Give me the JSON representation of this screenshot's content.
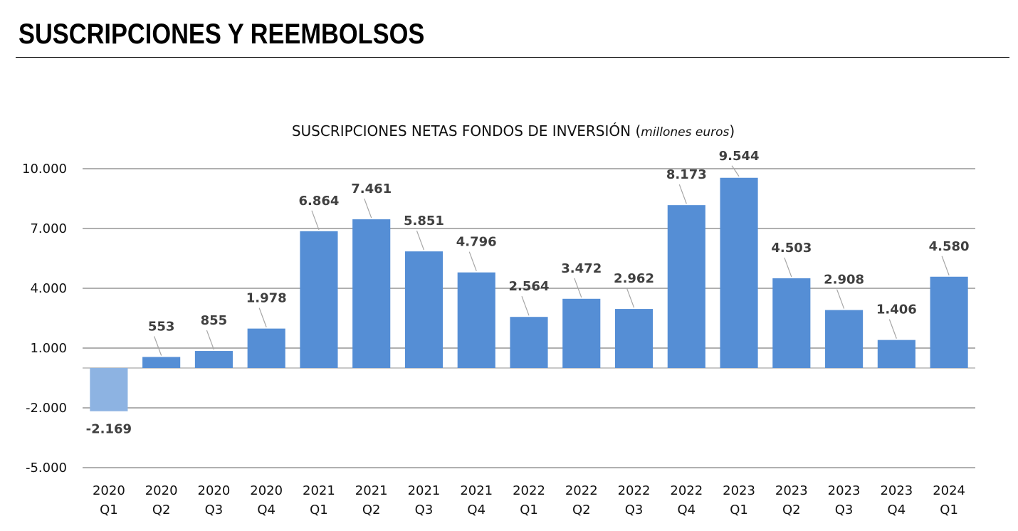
{
  "header": {
    "title": "SUSCRIPCIONES Y REEMBOLSOS"
  },
  "chart_data": {
    "type": "bar",
    "title": "SUSCRIPCIONES NETAS FONDOS DE INVERSIÓN",
    "title_unit": "millones euros",
    "categories": [
      [
        "2020",
        "Q1"
      ],
      [
        "2020",
        "Q2"
      ],
      [
        "2020",
        "Q3"
      ],
      [
        "2020",
        "Q4"
      ],
      [
        "2021",
        "Q1"
      ],
      [
        "2021",
        "Q2"
      ],
      [
        "2021",
        "Q3"
      ],
      [
        "2021",
        "Q4"
      ],
      [
        "2022",
        "Q1"
      ],
      [
        "2022",
        "Q2"
      ],
      [
        "2022",
        "Q3"
      ],
      [
        "2022",
        "Q4"
      ],
      [
        "2023",
        "Q1"
      ],
      [
        "2023",
        "Q2"
      ],
      [
        "2023",
        "Q3"
      ],
      [
        "2023",
        "Q4"
      ],
      [
        "2024",
        "Q1"
      ]
    ],
    "values": [
      -2169,
      553,
      855,
      1978,
      6864,
      7461,
      5851,
      4796,
      2564,
      3472,
      2962,
      8173,
      9544,
      4503,
      2908,
      1406,
      4580
    ],
    "value_labels": [
      "-2.169",
      "553",
      "855",
      "1.978",
      "6.864",
      "7.461",
      "5.851",
      "4.796",
      "2.564",
      "3.472",
      "2.962",
      "8.173",
      "9.544",
      "4.503",
      "2.908",
      "1.406",
      "4.580"
    ],
    "ylim": [
      -5000,
      10000
    ],
    "yticks": [
      -5000,
      -2000,
      1000,
      4000,
      7000,
      10000
    ],
    "ytick_labels": [
      "-5.000",
      "-2.000",
      "1.000",
      "4.000",
      "7.000",
      "10.000"
    ],
    "grid": true,
    "legend": "none",
    "colors": {
      "bar": "#558ed5",
      "bar_negative": "#8db3e2",
      "grid": "#808080",
      "label": "#404040"
    }
  }
}
